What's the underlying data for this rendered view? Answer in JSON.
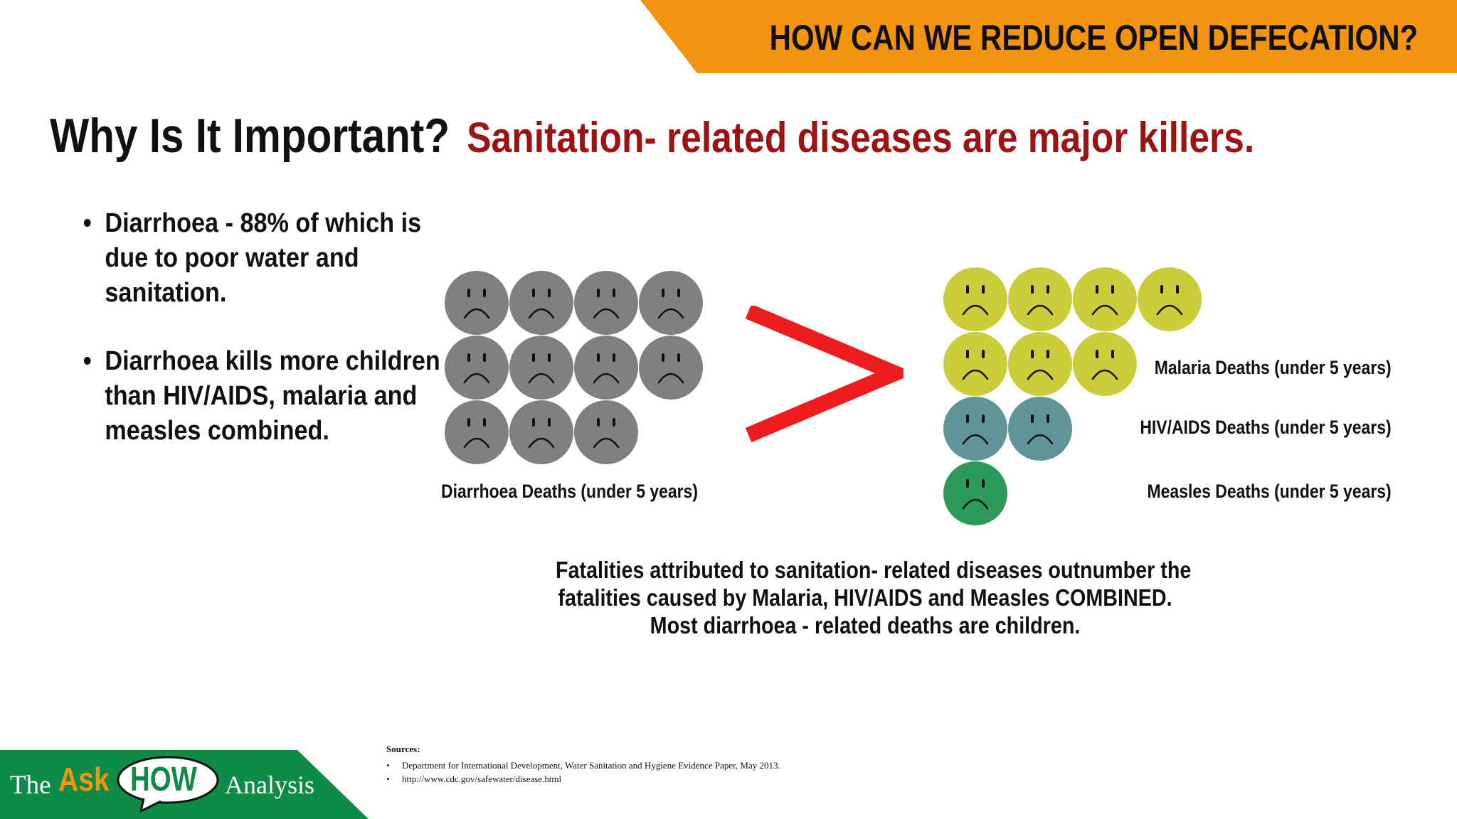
{
  "banner": {
    "title": "HOW CAN WE REDUCE OPEN DEFECATION?"
  },
  "heading": {
    "question": "Why Is It Important?",
    "statement": "Sanitation- related diseases are major killers."
  },
  "bullets": [
    "Diarrhoea - 88% of which is due to poor water and sanitation.",
    "Diarrhoea kills more children than HIV/AIDS, malaria and measles combined."
  ],
  "comparison": {
    "left": {
      "label": "Diarrhoea Deaths (under 5 years)",
      "count": 11,
      "color": "#808080"
    },
    "symbol": ">",
    "right": [
      {
        "label": "Malaria Deaths (under 5 years)",
        "count": 7,
        "color": "#CBCD3B"
      },
      {
        "label": "HIV/AIDS Deaths (under 5 years)",
        "count": 2,
        "color": "#5F9598"
      },
      {
        "label": "Measles Deaths (under 5 years)",
        "count": 1,
        "color": "#2E9A5A"
      }
    ]
  },
  "summary": [
    "Fatalities attributed to sanitation- related diseases outnumber the",
    "fatalities caused by Malaria, HIV/AIDS and Measles COMBINED.",
    "Most diarrhoea - related deaths are children."
  ],
  "logo": {
    "the": "The",
    "ask": "Ask",
    "how": "HOW",
    "analysis": "Analysis"
  },
  "sources": {
    "title": "Sources:",
    "items": [
      "Department for International Development, Water Sanitation and Hygiene Evidence Paper, May 2013.",
      "http://www.cdc.gov/safewater/disease.html"
    ]
  },
  "colors": {
    "banner": "#F39410",
    "heading_red": "#9B1313",
    "greater_than": "#EE1C1C",
    "logo_green": "#0E8B47"
  },
  "icons": {
    "face": "sad-face-icon",
    "bubble": "speech-bubble-icon"
  }
}
